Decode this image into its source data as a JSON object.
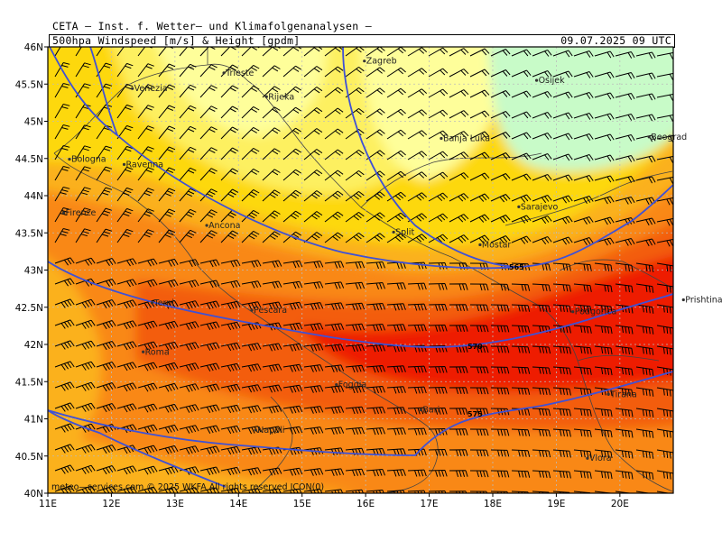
{
  "header": {
    "title": "CETA — Inst. f. Wetter— und Klimafolgenanalysen —",
    "subtitle": "500hpa Windspeed [m/s] & Height [gpdm]",
    "datetime": "09.07.2025 09 UTC"
  },
  "map": {
    "lon_labels": [
      "11E",
      "12E",
      "13E",
      "14E",
      "15E",
      "16E",
      "17E",
      "18E",
      "19E",
      "20E"
    ],
    "lat_labels": [
      "46N",
      "45.5N",
      "45N",
      "44.5N",
      "44N",
      "43.5N",
      "43N",
      "42.5N",
      "42N",
      "41.5N",
      "41N",
      "40.5N",
      "40N"
    ],
    "contour_labels": [
      "565",
      "570",
      "575"
    ],
    "cities": [
      {
        "name": "Trieste",
        "lon": 13.77,
        "lat": 45.65
      },
      {
        "name": "Zagreb",
        "lon": 15.98,
        "lat": 45.81
      },
      {
        "name": "Venezia",
        "lon": 12.33,
        "lat": 45.44
      },
      {
        "name": "Rijeka",
        "lon": 14.44,
        "lat": 45.33
      },
      {
        "name": "Osijek",
        "lon": 18.69,
        "lat": 45.55
      },
      {
        "name": "Bologna",
        "lon": 11.34,
        "lat": 44.49
      },
      {
        "name": "Banja Luka",
        "lon": 17.19,
        "lat": 44.77
      },
      {
        "name": "Beograd",
        "lon": 20.46,
        "lat": 44.79
      },
      {
        "name": "Ravenna",
        "lon": 12.2,
        "lat": 44.42
      },
      {
        "name": "Firenze",
        "lon": 11.25,
        "lat": 43.77
      },
      {
        "name": "Sarajevo",
        "lon": 18.41,
        "lat": 43.85
      },
      {
        "name": "Ancona",
        "lon": 13.5,
        "lat": 43.6
      },
      {
        "name": "Split",
        "lon": 16.44,
        "lat": 43.51
      },
      {
        "name": "Mostar",
        "lon": 17.8,
        "lat": 43.34
      },
      {
        "name": "Terni",
        "lon": 12.64,
        "lat": 42.56
      },
      {
        "name": "Pescara",
        "lon": 14.21,
        "lat": 42.46
      },
      {
        "name": "Podgorica",
        "lon": 19.26,
        "lat": 42.44
      },
      {
        "name": "Prishtina",
        "lon": 21.0,
        "lat": 42.6
      },
      {
        "name": "Roma",
        "lon": 12.5,
        "lat": 41.9
      },
      {
        "name": "Foggia",
        "lon": 15.54,
        "lat": 41.46
      },
      {
        "name": "Tirana",
        "lon": 19.82,
        "lat": 41.33
      },
      {
        "name": "Bari",
        "lon": 16.87,
        "lat": 41.12
      },
      {
        "name": "Napoli",
        "lon": 14.27,
        "lat": 40.85
      },
      {
        "name": "Vlora",
        "lon": 19.49,
        "lat": 40.47
      }
    ],
    "copyright": "meteo—services.com  © 2025 WKFA All rights reserved ICON(0)"
  },
  "colors": {
    "wind_bands": [
      "#c8fbc8",
      "#fefe9a",
      "#fdf060",
      "#fdd80e",
      "#fbb11d",
      "#f98816",
      "#f35d0d",
      "#ee1c06"
    ],
    "contour": "#3f51d6",
    "grid": "#bbbbbb"
  }
}
